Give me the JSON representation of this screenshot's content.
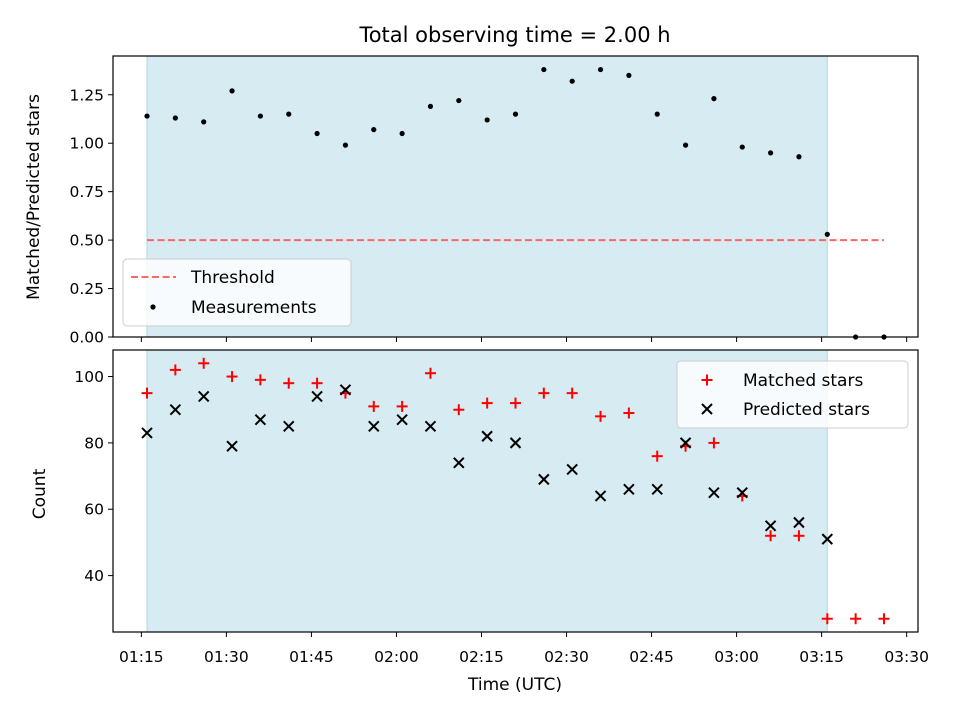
{
  "colors": {
    "span": "#add8e6",
    "threshold": "#ff6666",
    "matched": "#ff0000",
    "predicted": "#000000",
    "measurement": "#000000"
  },
  "chart_data": [
    {
      "type": "scatter",
      "title": "Total observing time = 2.00 h",
      "xlabel": "",
      "ylabel": "Matched/Predicted stars",
      "xlim": [
        "01:10",
        "03:32"
      ],
      "ylim": [
        0,
        1.45
      ],
      "yticks": [
        0,
        0.25,
        0.5,
        0.75,
        1.0,
        1.25
      ],
      "ytick_labels": [
        "0.00",
        "0.25",
        "0.50",
        "0.75",
        "1.00",
        "1.25"
      ],
      "shaded_span": [
        "01:16",
        "03:16"
      ],
      "legend": {
        "position": "bottom-left",
        "entries": [
          "Threshold",
          "Measurements"
        ]
      },
      "grid": false,
      "series": [
        {
          "name": "Threshold",
          "style": "dashed-line",
          "x": [
            "01:16",
            "03:26"
          ],
          "y": [
            0.5,
            0.5
          ]
        },
        {
          "name": "Measurements",
          "style": "dots",
          "x": [
            "01:16",
            "01:21",
            "01:26",
            "01:31",
            "01:36",
            "01:41",
            "01:46",
            "01:51",
            "01:56",
            "02:01",
            "02:06",
            "02:11",
            "02:16",
            "02:21",
            "02:26",
            "02:31",
            "02:36",
            "02:41",
            "02:46",
            "02:51",
            "02:56",
            "03:01",
            "03:06",
            "03:11",
            "03:16",
            "03:21",
            "03:26"
          ],
          "y": [
            1.14,
            1.13,
            1.11,
            1.27,
            1.14,
            1.15,
            1.05,
            0.99,
            1.07,
            1.05,
            1.19,
            1.22,
            1.12,
            1.15,
            1.38,
            1.32,
            1.38,
            1.35,
            1.15,
            0.99,
            1.23,
            0.98,
            0.95,
            0.93,
            0.53,
            0.0,
            0.0
          ]
        }
      ]
    },
    {
      "type": "scatter",
      "title": "",
      "xlabel": "Time (UTC)",
      "ylabel": "Count",
      "xlim": [
        "01:10",
        "03:32"
      ],
      "ylim": [
        23,
        108
      ],
      "yticks": [
        40,
        60,
        80,
        100
      ],
      "ytick_labels": [
        "40",
        "60",
        "80",
        "100"
      ],
      "xticks": [
        "01:15",
        "01:30",
        "01:45",
        "02:00",
        "02:15",
        "02:30",
        "02:45",
        "03:00",
        "03:15",
        "03:30"
      ],
      "shaded_span": [
        "01:16",
        "03:16"
      ],
      "legend": {
        "position": "top-right",
        "entries": [
          "Matched stars",
          "Predicted stars"
        ]
      },
      "grid": false,
      "series": [
        {
          "name": "Matched stars",
          "marker": "plus",
          "x": [
            "01:16",
            "01:21",
            "01:26",
            "01:31",
            "01:36",
            "01:41",
            "01:46",
            "01:51",
            "01:56",
            "02:01",
            "02:06",
            "02:11",
            "02:16",
            "02:21",
            "02:26",
            "02:31",
            "02:36",
            "02:41",
            "02:46",
            "02:51",
            "02:56",
            "03:01",
            "03:06",
            "03:11",
            "03:16",
            "03:21",
            "03:26"
          ],
          "y": [
            95,
            102,
            104,
            100,
            99,
            98,
            98,
            95,
            91,
            91,
            101,
            90,
            92,
            92,
            95,
            95,
            88,
            89,
            76,
            79,
            80,
            64,
            52,
            52,
            27,
            27,
            27
          ]
        },
        {
          "name": "Predicted stars",
          "marker": "x",
          "x": [
            "01:16",
            "01:21",
            "01:26",
            "01:31",
            "01:36",
            "01:41",
            "01:46",
            "01:51",
            "01:56",
            "02:01",
            "02:06",
            "02:11",
            "02:16",
            "02:21",
            "02:26",
            "02:31",
            "02:36",
            "02:41",
            "02:46",
            "02:51",
            "02:56",
            "03:01",
            "03:06",
            "03:11",
            "03:16"
          ],
          "y": [
            83,
            90,
            94,
            79,
            87,
            85,
            94,
            96,
            85,
            87,
            85,
            74,
            82,
            80,
            69,
            72,
            64,
            66,
            66,
            80,
            65,
            65,
            55,
            56,
            51
          ]
        }
      ]
    }
  ]
}
